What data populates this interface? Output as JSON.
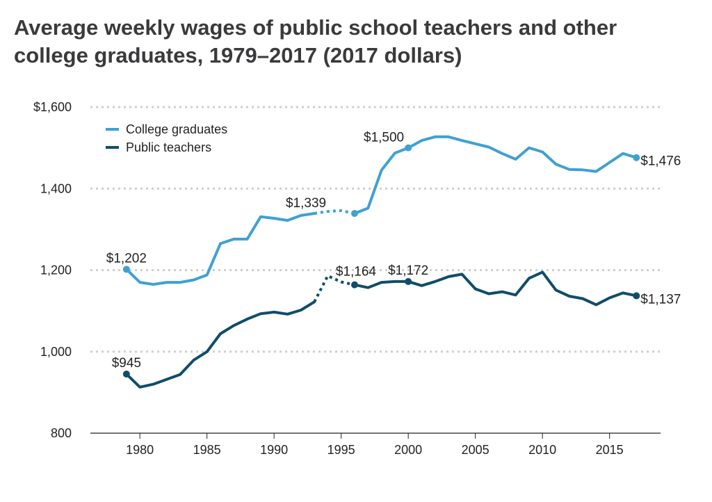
{
  "title_line1": "Average weekly wages of public school teachers and other",
  "title_line2": "college graduates, 1979–2017 (2017 dollars)",
  "colors": {
    "college": "#3fa1d2",
    "teachers": "#0f4d6b",
    "grid": "#cfcfcf",
    "axis": "#231f20"
  },
  "chart_data": {
    "type": "line",
    "title": "Average weekly wages of public school teachers and other college graduates, 1979–2017 (2017 dollars)",
    "xlim": [
      1974.5,
      2018.8
    ],
    "ylim": [
      800,
      1600
    ],
    "x_ticks": [
      1980,
      1985,
      1990,
      1995,
      2000,
      2005,
      2010,
      2015
    ],
    "x_tick_labels": [
      "1980",
      "1985",
      "1990",
      "1995",
      "2000",
      "2005",
      "2010",
      "2015"
    ],
    "y_ticks": [
      800,
      1000,
      1200,
      1400,
      1600
    ],
    "y_tick_labels": [
      "800",
      "1,000",
      "1,200",
      "1,400",
      "$1,600"
    ],
    "grid": "horizontal dotted",
    "legend_position": "top-left",
    "series": [
      {
        "name": "College graduates",
        "color": "#3fa1d2",
        "x": [
          1979,
          1980,
          1981,
          1982,
          1983,
          1984,
          1985,
          1986,
          1987,
          1988,
          1989,
          1990,
          1991,
          1992,
          1993,
          1994,
          1995,
          1996,
          1997,
          1998,
          1999,
          2000,
          2001,
          2002,
          2003,
          2004,
          2005,
          2006,
          2007,
          2008,
          2009,
          2010,
          2011,
          2012,
          2013,
          2014,
          2015,
          2016,
          2017
        ],
        "y": [
          1202,
          1170,
          1165,
          1170,
          1170,
          1176,
          1188,
          1265,
          1276,
          1276,
          1331,
          1327,
          1322,
          1334,
          1339,
          1344,
          1346,
          1339,
          1352,
          1445,
          1487,
          1500,
          1518,
          1527,
          1527,
          1518,
          1510,
          1502,
          1486,
          1472,
          1500,
          1490,
          1460,
          1447,
          1446,
          1442,
          1464,
          1486,
          1476
        ],
        "dotted_segments": [
          [
            1993,
            1996
          ]
        ],
        "labels": [
          {
            "x": 1979,
            "y": 1202,
            "text": "$1,202"
          },
          {
            "x": 1993,
            "y": 1339,
            "text": "$1,339"
          },
          {
            "x": 2000,
            "y": 1500,
            "text": "$1,500"
          },
          {
            "x": 2017,
            "y": 1476,
            "text": "$1,476"
          }
        ],
        "marker_points": [
          1979,
          1996,
          2000,
          2017
        ]
      },
      {
        "name": "Public teachers",
        "color": "#0f4d6b",
        "x": [
          1979,
          1980,
          1981,
          1982,
          1983,
          1984,
          1985,
          1986,
          1987,
          1988,
          1989,
          1990,
          1991,
          1992,
          1993,
          1994,
          1995,
          1996,
          1997,
          1998,
          1999,
          2000,
          2001,
          2002,
          2003,
          2004,
          2005,
          2006,
          2007,
          2008,
          2009,
          2010,
          2011,
          2012,
          2013,
          2014,
          2015,
          2016,
          2017
        ],
        "y": [
          945,
          913,
          920,
          932,
          944,
          979,
          1000,
          1044,
          1064,
          1080,
          1093,
          1097,
          1092,
          1102,
          1122,
          1186,
          1171,
          1164,
          1157,
          1170,
          1172,
          1172,
          1162,
          1172,
          1184,
          1190,
          1154,
          1142,
          1147,
          1139,
          1180,
          1195,
          1151,
          1136,
          1130,
          1115,
          1132,
          1144,
          1137
        ],
        "dotted_segments": [
          [
            1993,
            1996
          ]
        ],
        "labels": [
          {
            "x": 1979,
            "y": 945,
            "text": "$945"
          },
          {
            "x": 1996,
            "y": 1164,
            "text": "$1,164"
          },
          {
            "x": 2000,
            "y": 1172,
            "text": "$1,172"
          },
          {
            "x": 2017,
            "y": 1137,
            "text": "$1,137"
          }
        ],
        "marker_points": [
          1979,
          1996,
          2000,
          2017
        ]
      }
    ]
  }
}
